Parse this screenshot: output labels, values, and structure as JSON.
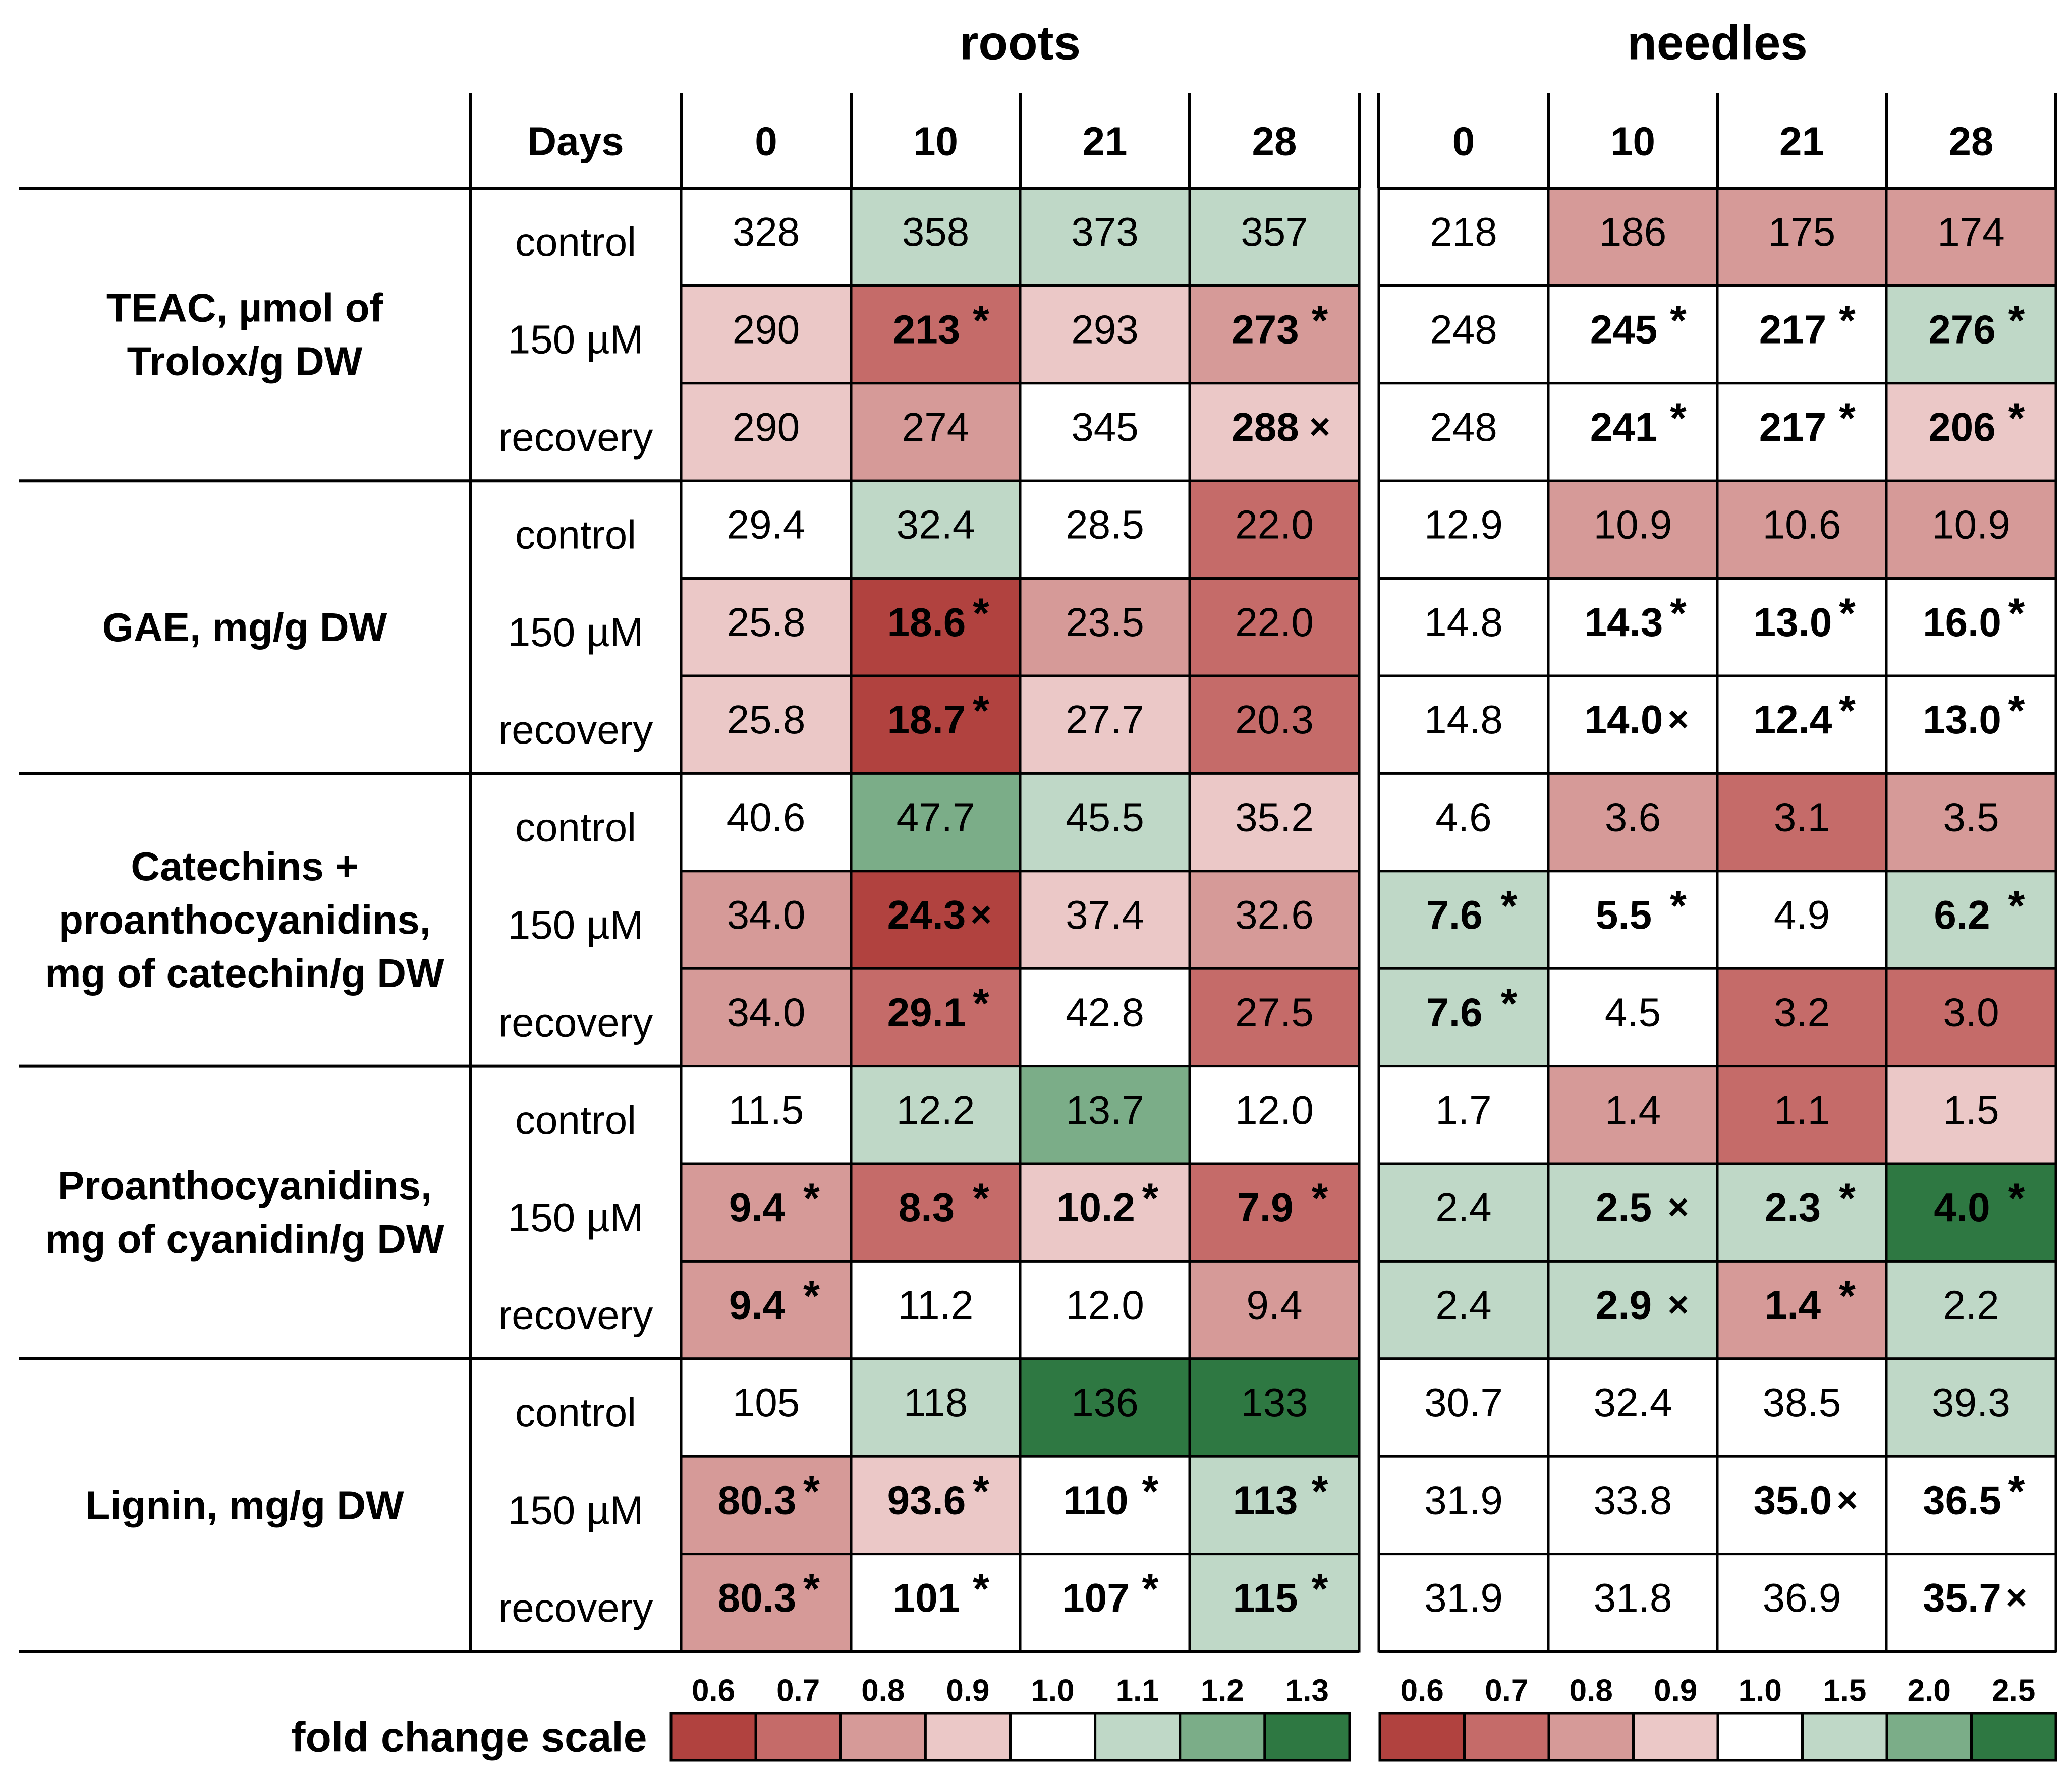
{
  "chart_data": {
    "type": "heatmap",
    "panels": [
      "roots",
      "needles"
    ],
    "days_label": "Days",
    "days": [
      "0",
      "10",
      "21",
      "28"
    ],
    "treatments": [
      "control",
      "150 µM",
      "recovery"
    ],
    "rows": [
      {
        "label": "TEAC, µmol of Trolox/g DW",
        "label_lines": [
          "TEAC, µmol of",
          "Trolox/g DW"
        ],
        "roots": [
          [
            {
              "v": "328",
              "b": false,
              "m": "",
              "fc": 1.0
            },
            {
              "v": "358",
              "b": false,
              "m": "",
              "fc": 1.09
            },
            {
              "v": "373",
              "b": false,
              "m": "",
              "fc": 1.14
            },
            {
              "v": "357",
              "b": false,
              "m": "",
              "fc": 1.09
            }
          ],
          [
            {
              "v": "290",
              "b": false,
              "m": "",
              "fc": 0.88
            },
            {
              "v": "213",
              "b": true,
              "m": "*",
              "fc": 0.65
            },
            {
              "v": "293",
              "b": false,
              "m": "",
              "fc": 0.89
            },
            {
              "v": "273",
              "b": true,
              "m": "*",
              "fc": 0.83
            }
          ],
          [
            {
              "v": "290",
              "b": false,
              "m": "",
              "fc": 0.88
            },
            {
              "v": "274",
              "b": false,
              "m": "",
              "fc": 0.84
            },
            {
              "v": "345",
              "b": false,
              "m": "",
              "fc": 1.05
            },
            {
              "v": "288",
              "b": true,
              "m": "×",
              "fc": 0.88
            }
          ]
        ],
        "needles": [
          [
            {
              "v": "218",
              "b": false,
              "m": "",
              "fc": 1.0
            },
            {
              "v": "186",
              "b": false,
              "m": "",
              "fc": 0.85
            },
            {
              "v": "175",
              "b": false,
              "m": "",
              "fc": 0.8
            },
            {
              "v": "174",
              "b": false,
              "m": "",
              "fc": 0.8
            }
          ],
          [
            {
              "v": "248",
              "b": false,
              "m": "",
              "fc": 1.14
            },
            {
              "v": "245",
              "b": true,
              "m": "*",
              "fc": 1.12
            },
            {
              "v": "217",
              "b": true,
              "m": "*",
              "fc": 1.0
            },
            {
              "v": "276",
              "b": true,
              "m": "*",
              "fc": 1.27
            }
          ],
          [
            {
              "v": "248",
              "b": false,
              "m": "",
              "fc": 1.14
            },
            {
              "v": "241",
              "b": true,
              "m": "*",
              "fc": 1.11
            },
            {
              "v": "217",
              "b": true,
              "m": "*",
              "fc": 1.0
            },
            {
              "v": "206",
              "b": true,
              "m": "*",
              "fc": 0.94
            }
          ]
        ]
      },
      {
        "label": "GAE, mg/g DW",
        "label_lines": [
          "GAE, mg/g DW"
        ],
        "roots": [
          [
            {
              "v": "29.4",
              "b": false,
              "m": "",
              "fc": 1.0
            },
            {
              "v": "32.4",
              "b": false,
              "m": "",
              "fc": 1.1
            },
            {
              "v": "28.5",
              "b": false,
              "m": "",
              "fc": 0.97
            },
            {
              "v": "22.0",
              "b": false,
              "m": "",
              "fc": 0.75
            }
          ],
          [
            {
              "v": "25.8",
              "b": false,
              "m": "",
              "fc": 0.88
            },
            {
              "v": "18.6",
              "b": true,
              "m": "*",
              "fc": 0.63
            },
            {
              "v": "23.5",
              "b": false,
              "m": "",
              "fc": 0.8
            },
            {
              "v": "22.0",
              "b": false,
              "m": "",
              "fc": 0.75
            }
          ],
          [
            {
              "v": "25.8",
              "b": false,
              "m": "",
              "fc": 0.88
            },
            {
              "v": "18.7",
              "b": true,
              "m": "*",
              "fc": 0.64
            },
            {
              "v": "27.7",
              "b": false,
              "m": "",
              "fc": 0.94
            },
            {
              "v": "20.3",
              "b": false,
              "m": "",
              "fc": 0.69
            }
          ]
        ],
        "needles": [
          [
            {
              "v": "12.9",
              "b": false,
              "m": "",
              "fc": 1.0
            },
            {
              "v": "10.9",
              "b": false,
              "m": "",
              "fc": 0.84
            },
            {
              "v": "10.6",
              "b": false,
              "m": "",
              "fc": 0.82
            },
            {
              "v": "10.9",
              "b": false,
              "m": "",
              "fc": 0.84
            }
          ],
          [
            {
              "v": "14.8",
              "b": false,
              "m": "",
              "fc": 1.15
            },
            {
              "v": "14.3",
              "b": true,
              "m": "*",
              "fc": 1.11
            },
            {
              "v": "13.0",
              "b": true,
              "m": "*",
              "fc": 1.01
            },
            {
              "v": "16.0",
              "b": true,
              "m": "*",
              "fc": 1.24
            }
          ],
          [
            {
              "v": "14.8",
              "b": false,
              "m": "",
              "fc": 1.15
            },
            {
              "v": "14.0",
              "b": true,
              "m": "×",
              "fc": 1.09
            },
            {
              "v": "12.4",
              "b": true,
              "m": "*",
              "fc": 0.96
            },
            {
              "v": "13.0",
              "b": true,
              "m": "*",
              "fc": 1.01
            }
          ]
        ]
      },
      {
        "label": "Catechins + proanthocyanidins, mg of catechin/g DW",
        "label_lines": [
          "Catechins +",
          "proanthocyanidins,",
          "mg of catechin/g DW"
        ],
        "roots": [
          [
            {
              "v": "40.6",
              "b": false,
              "m": "",
              "fc": 1.0
            },
            {
              "v": "47.7",
              "b": false,
              "m": "",
              "fc": 1.17
            },
            {
              "v": "45.5",
              "b": false,
              "m": "",
              "fc": 1.12
            },
            {
              "v": "35.2",
              "b": false,
              "m": "",
              "fc": 0.87
            }
          ],
          [
            {
              "v": "34.0",
              "b": false,
              "m": "",
              "fc": 0.84
            },
            {
              "v": "24.3",
              "b": true,
              "m": "×",
              "fc": 0.6
            },
            {
              "v": "37.4",
              "b": false,
              "m": "",
              "fc": 0.92
            },
            {
              "v": "32.6",
              "b": false,
              "m": "",
              "fc": 0.8
            }
          ],
          [
            {
              "v": "34.0",
              "b": false,
              "m": "",
              "fc": 0.84
            },
            {
              "v": "29.1",
              "b": true,
              "m": "*",
              "fc": 0.72
            },
            {
              "v": "42.8",
              "b": false,
              "m": "",
              "fc": 1.05
            },
            {
              "v": "27.5",
              "b": false,
              "m": "",
              "fc": 0.68
            }
          ]
        ],
        "needles": [
          [
            {
              "v": "4.6",
              "b": false,
              "m": "",
              "fc": 1.0
            },
            {
              "v": "3.6",
              "b": false,
              "m": "",
              "fc": 0.78
            },
            {
              "v": "3.1",
              "b": false,
              "m": "",
              "fc": 0.67
            },
            {
              "v": "3.5",
              "b": false,
              "m": "",
              "fc": 0.76
            }
          ],
          [
            {
              "v": "7.6",
              "b": true,
              "m": "*",
              "fc": 1.65
            },
            {
              "v": "5.5",
              "b": true,
              "m": "*",
              "fc": 1.2
            },
            {
              "v": "4.9",
              "b": false,
              "m": "",
              "fc": 1.07
            },
            {
              "v": "6.2",
              "b": true,
              "m": "*",
              "fc": 1.35
            }
          ],
          [
            {
              "v": "7.6",
              "b": true,
              "m": "*",
              "fc": 1.65
            },
            {
              "v": "4.5",
              "b": false,
              "m": "",
              "fc": 0.98
            },
            {
              "v": "3.2",
              "b": false,
              "m": "",
              "fc": 0.7
            },
            {
              "v": "3.0",
              "b": false,
              "m": "",
              "fc": 0.65
            }
          ]
        ]
      },
      {
        "label": "Proanthocyanidins, mg of cyanidin/g DW",
        "label_lines": [
          "Proanthocyanidins,",
          "mg of cyanidin/g DW"
        ],
        "roots": [
          [
            {
              "v": "11.5",
              "b": false,
              "m": "",
              "fc": 1.0
            },
            {
              "v": "12.2",
              "b": false,
              "m": "",
              "fc": 1.06
            },
            {
              "v": "13.7",
              "b": false,
              "m": "",
              "fc": 1.19
            },
            {
              "v": "12.0",
              "b": false,
              "m": "",
              "fc": 1.04
            }
          ],
          [
            {
              "v": "9.4",
              "b": true,
              "m": "*",
              "fc": 0.82
            },
            {
              "v": "8.3",
              "b": true,
              "m": "*",
              "fc": 0.72
            },
            {
              "v": "10.2",
              "b": true,
              "m": "*",
              "fc": 0.89
            },
            {
              "v": "7.9",
              "b": true,
              "m": "*",
              "fc": 0.69
            }
          ],
          [
            {
              "v": "9.4",
              "b": true,
              "m": "*",
              "fc": 0.82
            },
            {
              "v": "11.2",
              "b": false,
              "m": "",
              "fc": 0.97
            },
            {
              "v": "12.0",
              "b": false,
              "m": "",
              "fc": 1.04
            },
            {
              "v": "9.4",
              "b": false,
              "m": "",
              "fc": 0.82
            }
          ]
        ],
        "needles": [
          [
            {
              "v": "1.7",
              "b": false,
              "m": "",
              "fc": 1.0
            },
            {
              "v": "1.4",
              "b": false,
              "m": "",
              "fc": 0.82
            },
            {
              "v": "1.1",
              "b": false,
              "m": "",
              "fc": 0.65
            },
            {
              "v": "1.5",
              "b": false,
              "m": "",
              "fc": 0.88
            }
          ],
          [
            {
              "v": "2.4",
              "b": false,
              "m": "",
              "fc": 1.41
            },
            {
              "v": "2.5",
              "b": true,
              "m": "×",
              "fc": 1.47
            },
            {
              "v": "2.3",
              "b": true,
              "m": "*",
              "fc": 1.35
            },
            {
              "v": "4.0",
              "b": true,
              "m": "*",
              "fc": 2.35
            }
          ],
          [
            {
              "v": "2.4",
              "b": false,
              "m": "",
              "fc": 1.41
            },
            {
              "v": "2.9",
              "b": true,
              "m": "×",
              "fc": 1.71
            },
            {
              "v": "1.4",
              "b": true,
              "m": "*",
              "fc": 0.82
            },
            {
              "v": "2.2",
              "b": false,
              "m": "",
              "fc": 1.29
            }
          ]
        ]
      },
      {
        "label": "Lignin, mg/g DW",
        "label_lines": [
          "Lignin, mg/g DW"
        ],
        "roots": [
          [
            {
              "v": "105",
              "b": false,
              "m": "",
              "fc": 1.0
            },
            {
              "v": "118",
              "b": false,
              "m": "",
              "fc": 1.12
            },
            {
              "v": "136",
              "b": false,
              "m": "",
              "fc": 1.3
            },
            {
              "v": "133",
              "b": false,
              "m": "",
              "fc": 1.27
            }
          ],
          [
            {
              "v": "80.3",
              "b": true,
              "m": "*",
              "fc": 0.76
            },
            {
              "v": "93.6",
              "b": true,
              "m": "*",
              "fc": 0.89
            },
            {
              "v": "110",
              "b": true,
              "m": "*",
              "fc": 1.05
            },
            {
              "v": "113",
              "b": true,
              "m": "*",
              "fc": 1.08
            }
          ],
          [
            {
              "v": "80.3",
              "b": true,
              "m": "*",
              "fc": 0.76
            },
            {
              "v": "101",
              "b": true,
              "m": "*",
              "fc": 0.96
            },
            {
              "v": "107",
              "b": true,
              "m": "*",
              "fc": 1.02
            },
            {
              "v": "115",
              "b": true,
              "m": "*",
              "fc": 1.1
            }
          ]
        ],
        "needles": [
          [
            {
              "v": "30.7",
              "b": false,
              "m": "",
              "fc": 1.0
            },
            {
              "v": "32.4",
              "b": false,
              "m": "",
              "fc": 1.06
            },
            {
              "v": "38.5",
              "b": false,
              "m": "",
              "fc": 1.25
            },
            {
              "v": "39.3",
              "b": false,
              "m": "",
              "fc": 1.28
            }
          ],
          [
            {
              "v": "31.9",
              "b": false,
              "m": "",
              "fc": 1.04
            },
            {
              "v": "33.8",
              "b": false,
              "m": "",
              "fc": 1.1
            },
            {
              "v": "35.0",
              "b": true,
              "m": "×",
              "fc": 1.14
            },
            {
              "v": "36.5",
              "b": true,
              "m": "*",
              "fc": 1.19
            }
          ],
          [
            {
              "v": "31.9",
              "b": false,
              "m": "",
              "fc": 1.04
            },
            {
              "v": "31.8",
              "b": false,
              "m": "",
              "fc": 1.04
            },
            {
              "v": "36.9",
              "b": false,
              "m": "",
              "fc": 1.2
            },
            {
              "v": "35.7",
              "b": true,
              "m": "×",
              "fc": 1.16
            }
          ]
        ]
      }
    ],
    "scale_label": "fold change scale",
    "scales": {
      "roots": {
        "ticks": [
          "0.6",
          "0.7",
          "0.8",
          "0.9",
          "1.0",
          "1.1",
          "1.2",
          "1.3"
        ],
        "stops": [
          0.6,
          0.7,
          0.8,
          0.9,
          1.0,
          1.1,
          1.2,
          1.3
        ]
      },
      "needles": {
        "ticks": [
          "0.6",
          "0.7",
          "0.8",
          "0.9",
          "1.0",
          "1.5",
          "2.0",
          "2.5"
        ],
        "stops": [
          0.6,
          0.7,
          0.8,
          0.9,
          1.0,
          1.5,
          2.0,
          2.5
        ]
      }
    },
    "palette": [
      "#b1423f",
      "#c56b69",
      "#d69a98",
      "#ebc8c7",
      "#ffffff",
      "#bfd8c7",
      "#7bad88",
      "#2e7842"
    ]
  }
}
